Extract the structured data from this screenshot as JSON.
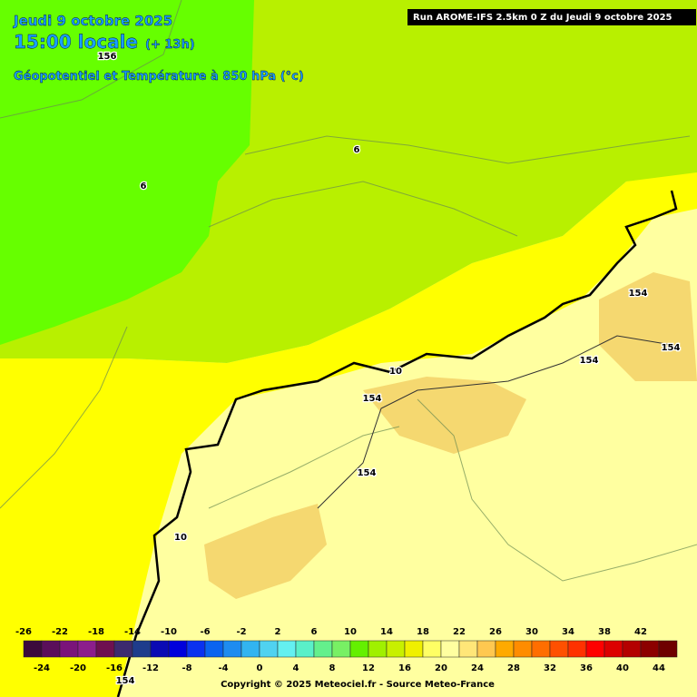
{
  "header": {
    "date": "Jeudi 9 octobre 2025",
    "time": "15:00 locale",
    "offset": "(+ 13h)",
    "parameter": "Géopotentiel et Température à 850 hPa (°c)",
    "run": "Run AROME-IFS 2.5km 0 Z du Jeudi 9 octobre 2025"
  },
  "map": {
    "contour_labels": [
      "156",
      "6",
      "6",
      "10",
      "154",
      "154",
      "154",
      "154",
      "154",
      "10",
      "154"
    ]
  },
  "legend": {
    "labels_top": [
      -26,
      -22,
      -18,
      -14,
      -10,
      -6,
      -2,
      2,
      6,
      10,
      14,
      18,
      22,
      26,
      30,
      34,
      38,
      42
    ],
    "labels_bottom": [
      -24,
      -20,
      -16,
      -12,
      -8,
      -4,
      0,
      4,
      8,
      12,
      16,
      20,
      24,
      28,
      32,
      36,
      40,
      44
    ],
    "colors": [
      "#3c0a3c",
      "#5a0f5a",
      "#7a147a",
      "#8c1e8c",
      "#6e1050",
      "#3c2a6e",
      "#1e3c8c",
      "#0a0ab4",
      "#0000dc",
      "#0a32f0",
      "#0a64f0",
      "#1e8cf0",
      "#32b4f0",
      "#50d2f0",
      "#64f0f0",
      "#5af0c8",
      "#64f08c",
      "#78f064",
      "#64f000",
      "#a0f000",
      "#c8f000",
      "#f0f000",
      "#ffff64",
      "#ffffa0",
      "#ffe678",
      "#ffc850",
      "#ffaa00",
      "#ff8c00",
      "#ff6e00",
      "#ff5000",
      "#ff3200",
      "#ff0000",
      "#dc0000",
      "#b40000",
      "#8c0000",
      "#6e0000"
    ]
  },
  "footer": {
    "copyright": "Copyright © 2025 Meteociel.fr - Source Meteo-France"
  }
}
